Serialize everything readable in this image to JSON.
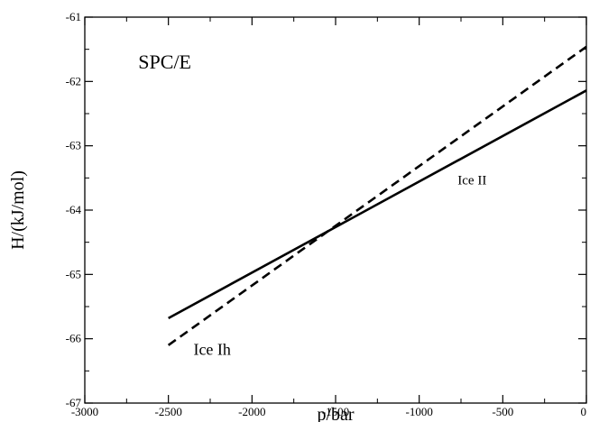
{
  "chart_data": {
    "type": "line",
    "title": "",
    "xlabel": "p/bar",
    "ylabel": "H/(kJ/mol)",
    "xlim": [
      -3000,
      0
    ],
    "ylim": [
      -67,
      -61
    ],
    "x_ticks": [
      -3000,
      -2500,
      -2000,
      -1500,
      -1000,
      -500,
      0
    ],
    "y_ticks": [
      -67,
      -66,
      -65,
      -64,
      -63,
      -62,
      -61
    ],
    "x_tick_labels": [
      "-3000",
      "-2500",
      "-2000",
      "-1500",
      "-1000",
      "-500",
      "0"
    ],
    "y_tick_labels": [
      "-67",
      "-66",
      "-65",
      "-64",
      "-63",
      "-62",
      "-61"
    ],
    "grid": false,
    "legend": "none",
    "series": [
      {
        "name": "Ice II",
        "style": "solid",
        "color": "#000000",
        "x": [
          -2500,
          0
        ],
        "y": [
          -65.68,
          -62.14
        ]
      },
      {
        "name": "Ice Ih",
        "style": "dashed",
        "color": "#000000",
        "x": [
          -2500,
          0
        ],
        "y": [
          -66.1,
          -61.46
        ]
      }
    ],
    "annotations": [
      {
        "text": "SPC/E",
        "x": -2680,
        "y": -61.8,
        "size": 22
      },
      {
        "text": "Ice II",
        "x": -770,
        "y": -63.6,
        "size": 15
      },
      {
        "text": "Ice Ih",
        "x": -2350,
        "y": -66.25,
        "size": 18
      }
    ]
  }
}
